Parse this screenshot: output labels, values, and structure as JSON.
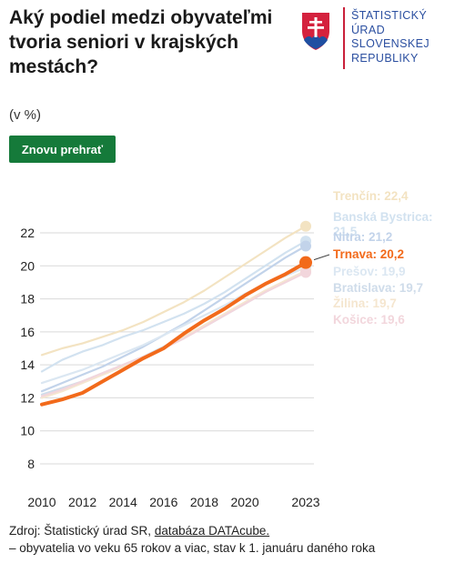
{
  "header": {
    "title": "Aký podiel medzi obyvateľmi tvoria seniori v krajských mestách?",
    "subtitle": "(v %)",
    "replay_label": "Znovu prehrať"
  },
  "logo": {
    "lines": [
      "ŠTATISTICKÝ",
      "ÚRAD",
      "SLOVENSKEJ",
      "REPUBLIKY"
    ],
    "emblem": "slovak-coat-of-arms-icon",
    "text_color": "#2b4fa0",
    "rule_color": "#c9203a"
  },
  "footer": {
    "source_prefix": "Zdroj: Štatistický úrad SR, ",
    "source_link": "databáza DATAcube.",
    "note": "– obyvatelia vo veku 65 rokov a viac, stav k 1. januáru daného roka"
  },
  "chart_data": {
    "type": "line",
    "x": [
      2010,
      2011,
      2012,
      2013,
      2014,
      2015,
      2016,
      2017,
      2018,
      2019,
      2020,
      2021,
      2022,
      2023
    ],
    "xticks": [
      2010,
      2012,
      2014,
      2016,
      2018,
      2020,
      2023
    ],
    "ylim": [
      8,
      22
    ],
    "yticks": [
      8,
      10,
      12,
      14,
      16,
      18,
      20,
      22
    ],
    "grid": true,
    "highlight": "Trnava",
    "highlight_color": "#f26a1b",
    "series": [
      {
        "name": "Trenčín",
        "label": "Trenčín: 22,4",
        "color": "#f3e3c2",
        "values": [
          14.6,
          15.0,
          15.3,
          15.7,
          16.1,
          16.6,
          17.2,
          17.8,
          18.5,
          19.3,
          20.1,
          20.9,
          21.7,
          22.4
        ]
      },
      {
        "name": "Banská Bystrica",
        "label": "Banská Bystrica: 21,5",
        "color": "#d2e2f0",
        "values": [
          13.6,
          14.3,
          14.8,
          15.2,
          15.7,
          16.1,
          16.6,
          17.1,
          17.7,
          18.4,
          19.2,
          20.0,
          20.8,
          21.5
        ]
      },
      {
        "name": "Nitra",
        "label": "Nitra: 21,2",
        "color": "#c2d3ea",
        "values": [
          12.4,
          12.9,
          13.4,
          13.9,
          14.5,
          15.1,
          15.8,
          16.5,
          17.3,
          18.1,
          18.9,
          19.7,
          20.5,
          21.2
        ]
      },
      {
        "name": "Trnava",
        "label": "Trnava: 20,2",
        "color": "#f26a1b",
        "values": [
          11.6,
          11.9,
          12.3,
          13.0,
          13.7,
          14.4,
          15.0,
          15.9,
          16.7,
          17.4,
          18.2,
          18.9,
          19.5,
          20.2
        ]
      },
      {
        "name": "Prešov",
        "label": "Prešov: 19,9",
        "color": "#dbe7f2",
        "values": [
          12.9,
          13.3,
          13.7,
          14.2,
          14.7,
          15.2,
          15.8,
          16.4,
          17.0,
          17.6,
          18.3,
          18.9,
          19.4,
          19.9
        ]
      },
      {
        "name": "Bratislava",
        "label": "Bratislava: 19,7",
        "color": "#cfdcea",
        "values": [
          12.2,
          12.6,
          13.0,
          13.5,
          14.0,
          14.5,
          15.1,
          15.7,
          16.3,
          17.0,
          17.7,
          18.4,
          19.1,
          19.7
        ]
      },
      {
        "name": "Žilina",
        "label": "Žilina: 19,7",
        "color": "#f5e6cf",
        "values": [
          12.0,
          12.4,
          12.9,
          13.4,
          13.9,
          14.4,
          15.0,
          15.7,
          16.4,
          17.1,
          17.8,
          18.5,
          19.1,
          19.7
        ]
      },
      {
        "name": "Košice",
        "label": "Košice: 19,6",
        "color": "#f2d6dc",
        "values": [
          12.1,
          12.5,
          13.0,
          13.5,
          14.0,
          14.5,
          15.0,
          15.6,
          16.3,
          17.0,
          17.7,
          18.4,
          19.0,
          19.6
        ]
      }
    ]
  }
}
